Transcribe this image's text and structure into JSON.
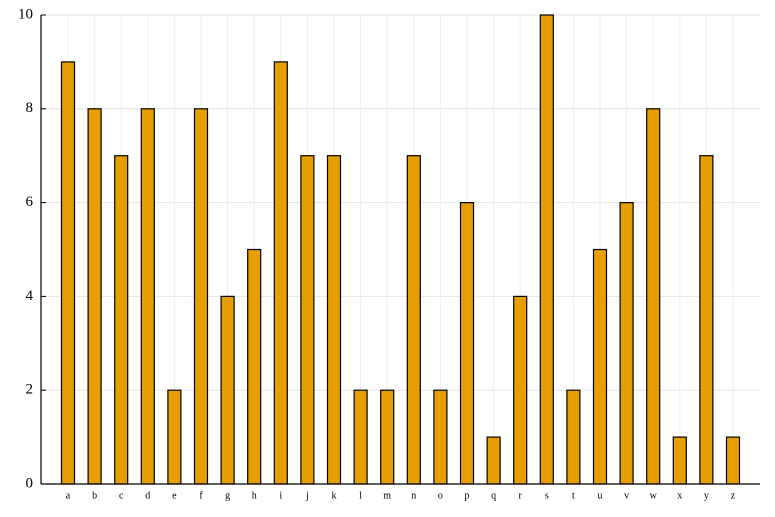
{
  "chart_data": {
    "type": "bar",
    "categories": [
      "a",
      "b",
      "c",
      "d",
      "e",
      "f",
      "g",
      "h",
      "i",
      "j",
      "k",
      "l",
      "m",
      "n",
      "o",
      "p",
      "q",
      "r",
      "s",
      "t",
      "u",
      "v",
      "w",
      "x",
      "y",
      "z"
    ],
    "values": [
      9,
      8,
      7,
      8,
      2,
      8,
      4,
      5,
      9,
      7,
      7,
      2,
      2,
      7,
      2,
      6,
      1,
      4,
      10,
      2,
      5,
      6,
      8,
      1,
      7,
      1
    ],
    "color": "#e69f00",
    "ylim": [
      0,
      10
    ],
    "yticks": [
      0,
      2,
      4,
      6,
      8,
      10
    ],
    "grid": true
  }
}
